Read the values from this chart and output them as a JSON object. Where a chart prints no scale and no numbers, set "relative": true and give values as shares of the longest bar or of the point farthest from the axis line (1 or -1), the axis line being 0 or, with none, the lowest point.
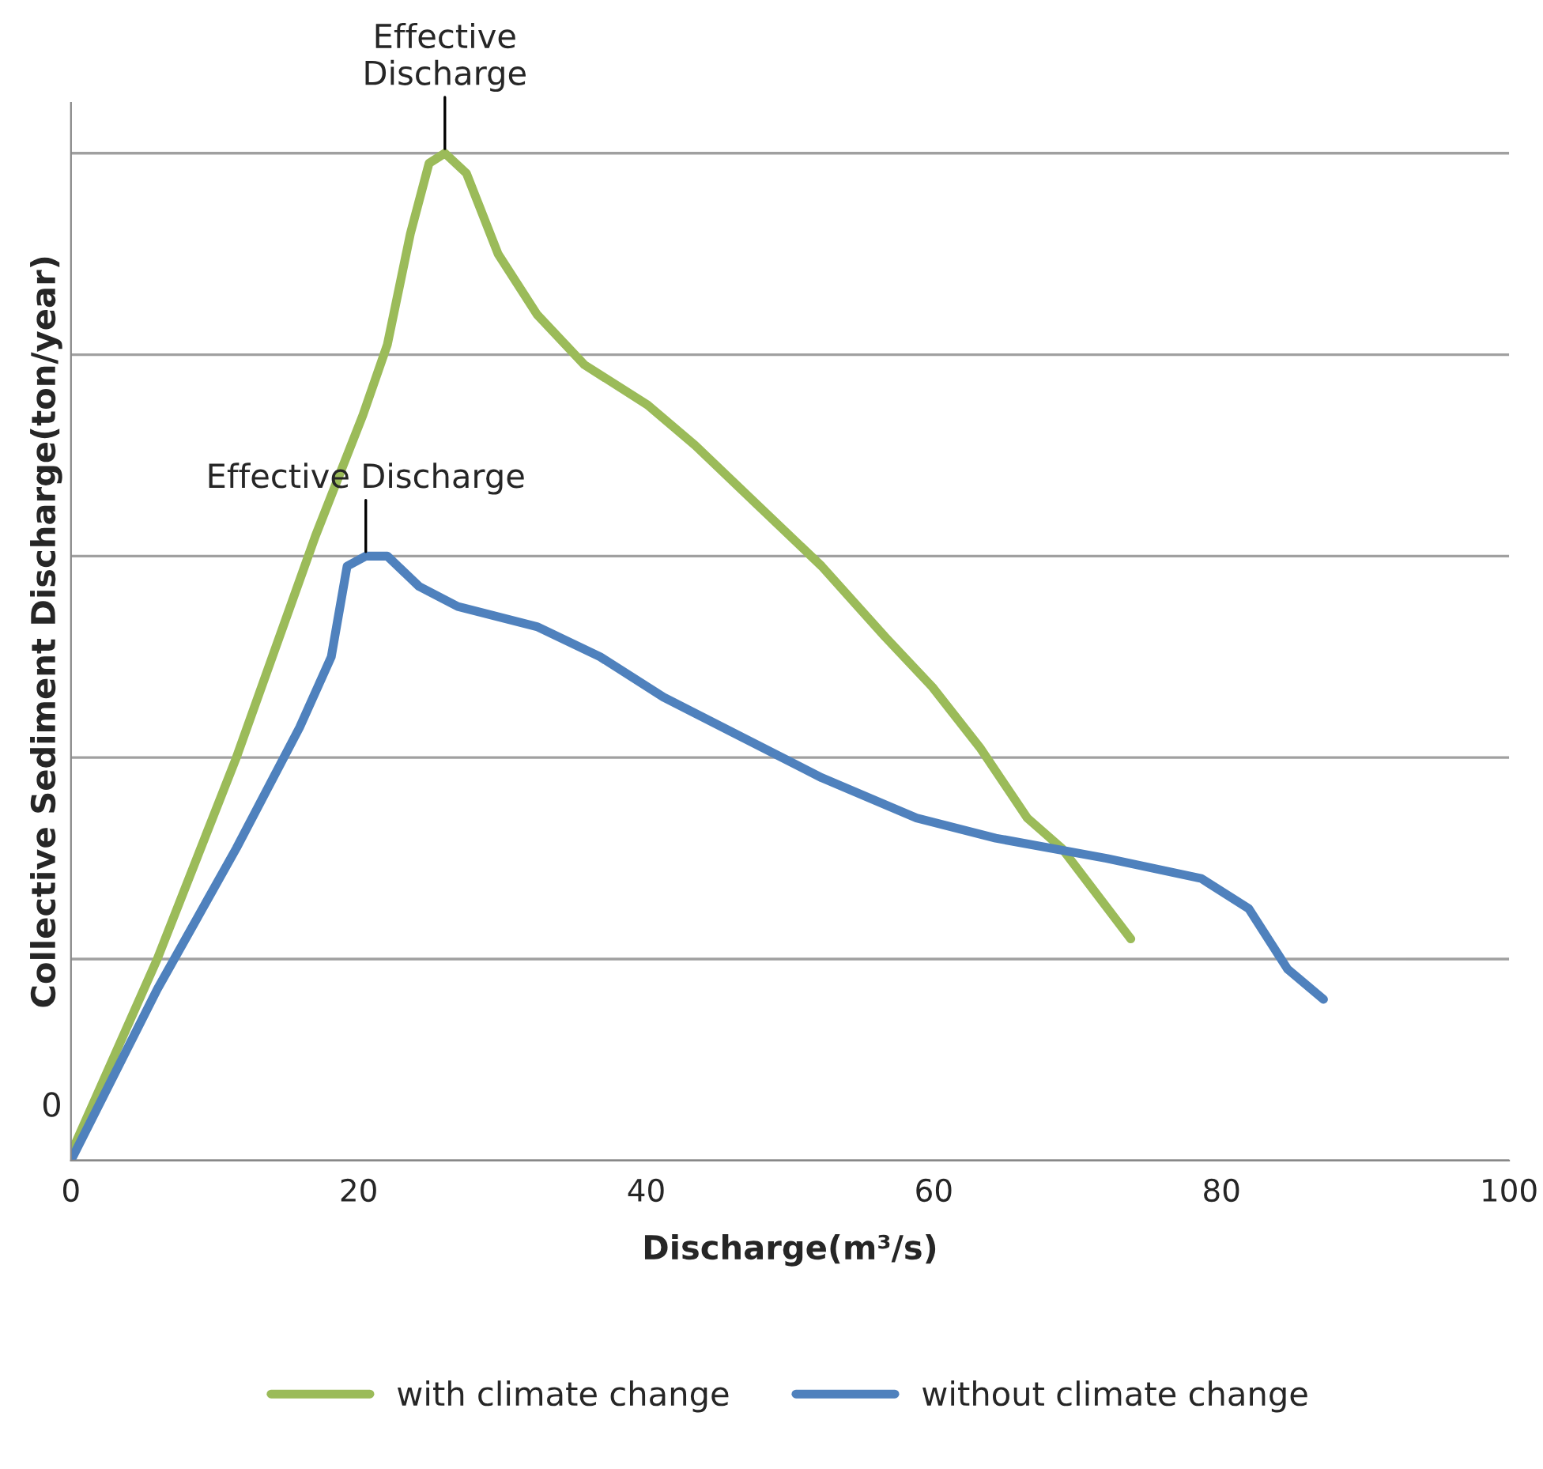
{
  "chart_data": {
    "type": "line",
    "relative": true,
    "xlabel": "Discharge(m³/s)",
    "ylabel": "Collective Sediment Discharge(ton/year)",
    "xlim": [
      0,
      100
    ],
    "xticks": [
      0,
      20,
      40,
      60,
      80,
      100
    ],
    "grid": "y",
    "legend": "bottom",
    "marker": "none",
    "line_style": "solid",
    "annotations": [
      {
        "text": "Effective\nDischarge",
        "x": 26.0,
        "y": 1.0
      },
      {
        "text": "Effective Discharge",
        "x": 20.5,
        "y": 0.6
      },
      "0"
    ],
    "series": [
      {
        "name": "with climate change",
        "color": "#9bbb59",
        "x": [
          0,
          6.0,
          11.5,
          17.0,
          20.3,
          22.0,
          23.6,
          24.9,
          26.0,
          27.5,
          29.7,
          32.4,
          35.7,
          40.1,
          43.4,
          47.8,
          52.2,
          56.6,
          59.9,
          63.2,
          66.5,
          68.9,
          73.7
        ],
        "values": [
          0.007,
          0.2,
          0.4,
          0.62,
          0.74,
          0.81,
          0.92,
          0.99,
          1.0,
          0.98,
          0.9,
          0.84,
          0.79,
          0.75,
          0.71,
          0.65,
          0.59,
          0.52,
          0.47,
          0.41,
          0.34,
          0.31,
          0.22
        ]
      },
      {
        "name": "without climate change",
        "color": "#4f81bd",
        "x": [
          0,
          6.0,
          11.5,
          15.9,
          18.1,
          19.2,
          20.5,
          22.0,
          24.2,
          26.9,
          32.4,
          36.8,
          41.2,
          46.7,
          52.2,
          58.8,
          64.3,
          72.0,
          78.6,
          81.9,
          84.6,
          87.1
        ],
        "values": [
          0,
          0.17,
          0.31,
          0.43,
          0.5,
          0.59,
          0.6,
          0.6,
          0.57,
          0.55,
          0.53,
          0.5,
          0.46,
          0.42,
          0.38,
          0.34,
          0.32,
          0.3,
          0.28,
          0.25,
          0.19,
          0.16
        ]
      }
    ]
  }
}
